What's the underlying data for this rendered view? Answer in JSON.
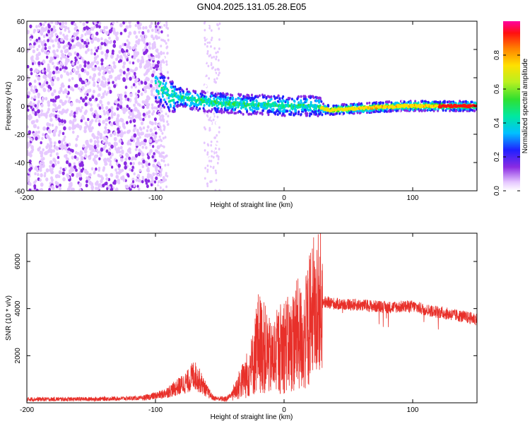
{
  "chart_data": [
    {
      "type": "heatmap",
      "title": "GN04.2025.131.05.28.E05",
      "xlabel": "Height of straight line (km)",
      "ylabel": "Frequency (Hz)",
      "xlim": [
        -200,
        150
      ],
      "ylim": [
        -60,
        60
      ],
      "xticks": [
        "-200",
        "-100",
        "0",
        "100"
      ],
      "yticks": [
        "60",
        "40",
        "20",
        "0",
        "-20",
        "-40",
        "-60"
      ],
      "xtick_values": [
        -200,
        -100,
        0,
        100
      ],
      "ytick_values": [
        60,
        40,
        20,
        0,
        -20,
        -40,
        -60
      ],
      "colorbar": {
        "label": "Normalized spectral amplitude",
        "range": [
          0,
          1
        ],
        "ticks": [
          "0.0",
          "0.2",
          "0.4",
          "0.6",
          "0.8"
        ],
        "tick_values": [
          0.0,
          0.2,
          0.4,
          0.6,
          0.8
        ]
      },
      "ridge": {
        "description": "strongest signal band",
        "x": [
          -100,
          -90,
          -75,
          -60,
          -45,
          -30,
          -15,
          0,
          15,
          25,
          35,
          50,
          70,
          90,
          110,
          130,
          150
        ],
        "freq": [
          15,
          8,
          5,
          3,
          2,
          1,
          1,
          0,
          0,
          0,
          -3,
          -2,
          -1,
          0,
          0,
          0,
          0
        ]
      }
    },
    {
      "type": "line",
      "title": "",
      "xlabel": "Height of straight line (km)",
      "ylabel": "SNR (10 * v/v)",
      "xlim": [
        -200,
        150
      ],
      "ylim": [
        0,
        7200
      ],
      "xticks": [
        "-200",
        "-100",
        "0",
        "100"
      ],
      "yticks": [
        "2000",
        "4000",
        "6000"
      ],
      "xtick_values": [
        -200,
        -100,
        0,
        100
      ],
      "ytick_values": [
        2000,
        4000,
        6000
      ],
      "series": [
        {
          "name": "SNR",
          "color": "#e8302a",
          "x": [
            -200,
            -150,
            -110,
            -95,
            -85,
            -75,
            -70,
            -65,
            -60,
            -55,
            -45,
            -40,
            -30,
            -25,
            -20,
            -15,
            -10,
            -5,
            0,
            5,
            10,
            15,
            20,
            25,
            28,
            30,
            35,
            40,
            60,
            80,
            100,
            110,
            120,
            130,
            140,
            150
          ],
          "values": [
            150,
            160,
            200,
            350,
            600,
            900,
            1200,
            900,
            500,
            200,
            150,
            400,
            1100,
            1500,
            2600,
            2300,
            1800,
            2200,
            2500,
            2400,
            2900,
            2600,
            3500,
            3600,
            4400,
            4300,
            4250,
            4200,
            4150,
            4050,
            4100,
            3950,
            3850,
            3750,
            3650,
            3550
          ]
        }
      ]
    }
  ]
}
